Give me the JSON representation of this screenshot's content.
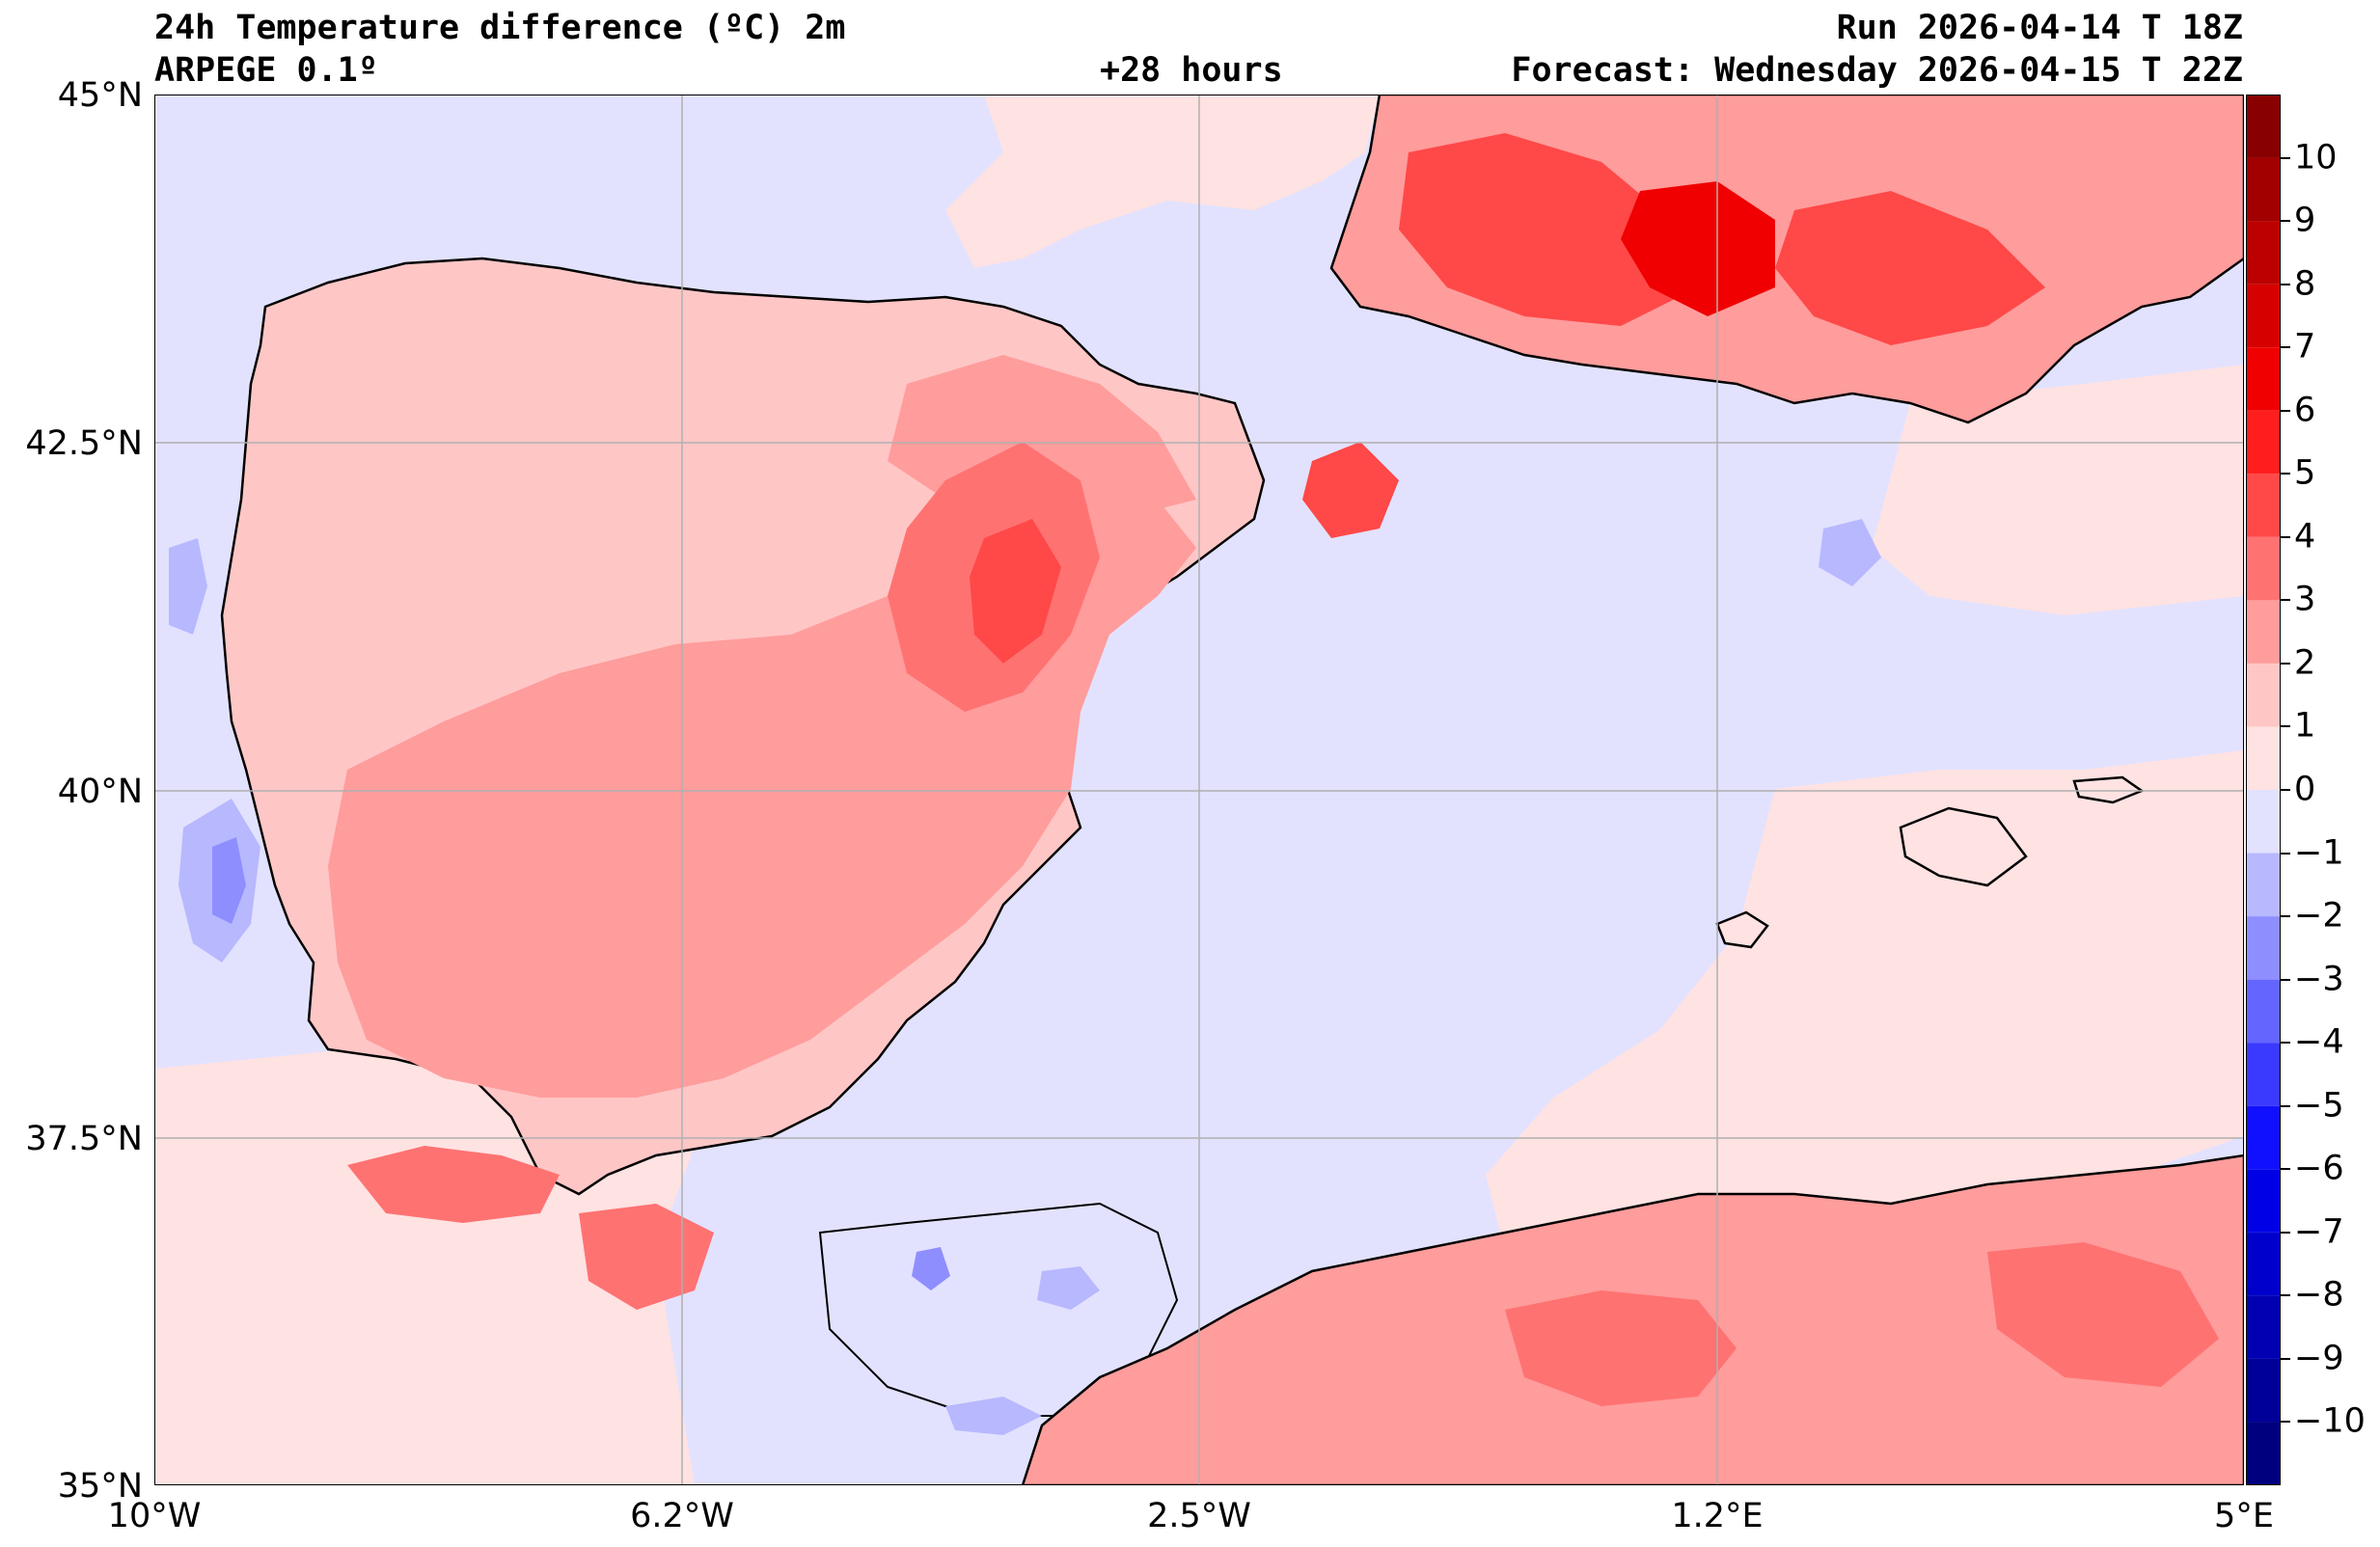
{
  "header": {
    "title": "24h Temperature difference (ºC) 2m",
    "model": "ARPEGE 0.1º",
    "lead_time": "+28 hours",
    "run": "Run 2026-04-14 T 18Z",
    "forecast": "Forecast: Wednesday 2026-04-15 T 22Z"
  },
  "axes": {
    "lat_labels": [
      "45°N",
      "42.5°N",
      "40°N",
      "37.5°N",
      "35°N"
    ],
    "lon_labels": [
      "10°W",
      "6.2°W",
      "2.5°W",
      "1.2°E",
      "5°E"
    ],
    "lat_range": [
      35,
      45
    ],
    "lon_range": [
      -10,
      5
    ],
    "gridlines": true
  },
  "colorbar": {
    "ticks": [
      "10",
      "9",
      "8",
      "7",
      "6",
      "5",
      "4",
      "3",
      "2",
      "1",
      "0",
      "−1",
      "−2",
      "−3",
      "−4",
      "−5",
      "−6",
      "−7",
      "−8",
      "−9",
      "−10"
    ],
    "range": [
      -11,
      11
    ],
    "step": 1,
    "colors": {
      "positive": [
        "#ffe2e2",
        "#ffc6c6",
        "#ff9c9c",
        "#ff7272",
        "#ff4848",
        "#ff1e1e",
        "#f00000",
        "#d60000",
        "#bc0000",
        "#a20000",
        "#880000"
      ],
      "negative": [
        "#e2e2ff",
        "#b8b8ff",
        "#8e8eff",
        "#6464ff",
        "#3a3aff",
        "#1010ff",
        "#0000e6",
        "#0000cc",
        "#0000b2",
        "#000098",
        "#00007e"
      ]
    }
  },
  "regions": {
    "sea_background": "#e2e2ff",
    "atlantic_south": "#ffe2e2",
    "land_base": "#ffc6c6",
    "inland_warm": "#ff9c9c",
    "hot_spots": "#ff4848",
    "hottest": "#f00000",
    "cold_spots": "#b8b8ff",
    "coldest": "#6464ff"
  }
}
